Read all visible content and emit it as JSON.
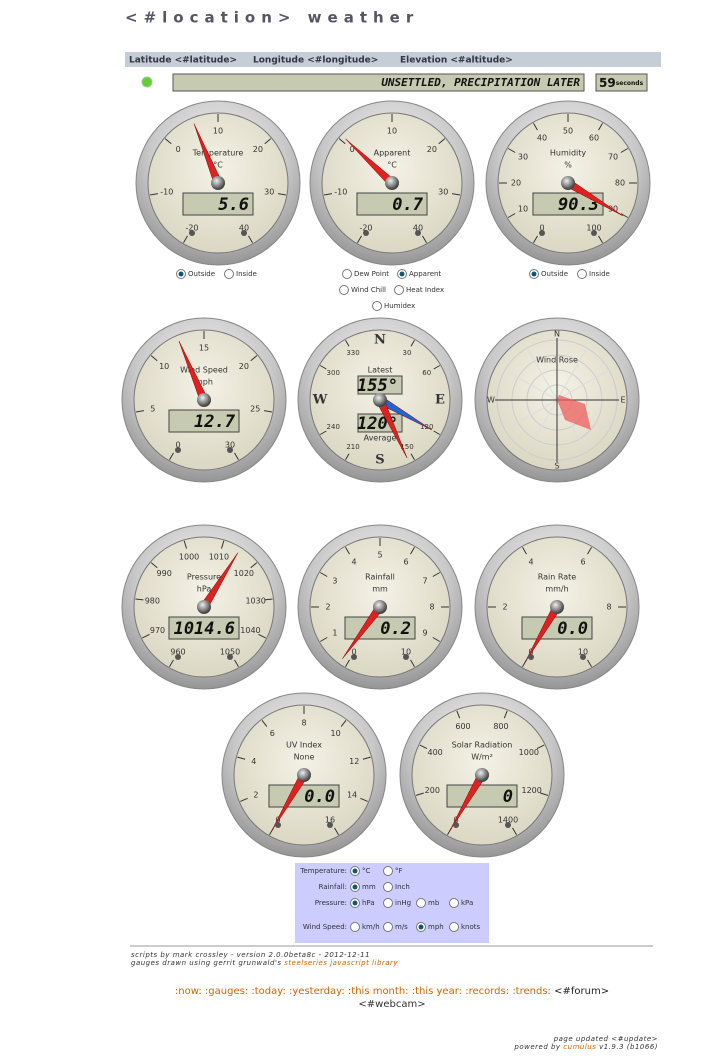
{
  "header": {
    "title": "<#location> weather",
    "coords": [
      "Latitude <#latitude>",
      "Longitude <#longitude>",
      "Elevation <#altitude>"
    ]
  },
  "status": {
    "forecast": "UNSETTLED, PRECIPITATION LATER",
    "countdown": 59,
    "countdown_unit": "seconds"
  },
  "gauges": [
    {
      "type": "radial",
      "title": "Temperature",
      "unit": "°C",
      "range": [
        -20,
        40
      ],
      "ticks": [
        -20,
        -10,
        0,
        10,
        20,
        30,
        40
      ],
      "value": 5.6
    },
    {
      "type": "radial",
      "title": "Apparent",
      "unit": "°C",
      "range": [
        -20,
        40
      ],
      "ticks": [
        -20,
        -10,
        0,
        10,
        20,
        30,
        40
      ],
      "value": 0.7
    },
    {
      "type": "radial",
      "title": "Humidity",
      "unit": "%",
      "range": [
        0,
        100
      ],
      "ticks": [
        0,
        10,
        20,
        30,
        40,
        50,
        60,
        70,
        80,
        90,
        100
      ],
      "value": 90.3
    },
    {
      "type": "radial",
      "title": "Wind Speed",
      "unit": "mph",
      "range": [
        0,
        30
      ],
      "ticks": [
        0,
        5,
        10,
        15,
        20,
        25,
        30
      ],
      "value": 12.7
    },
    {
      "type": "compass",
      "titles": [
        "Latest",
        "Average"
      ],
      "points": [
        "N",
        "E",
        "S",
        "W"
      ],
      "ticks": [
        30,
        60,
        120,
        150,
        210,
        240,
        300,
        330
      ],
      "values": [
        155,
        120
      ],
      "value_labels": [
        "155°",
        "120°"
      ]
    },
    {
      "type": "rose",
      "title": "Wind Rose",
      "points": [
        "N",
        "E",
        "S",
        "W"
      ]
    },
    {
      "type": "radial",
      "title": "Pressure",
      "unit": "hPa",
      "range": [
        960,
        1050
      ],
      "ticks": [
        960,
        970,
        980,
        990,
        1000,
        1010,
        1020,
        1030,
        1040,
        1050
      ],
      "value": 1014.6
    },
    {
      "type": "radial",
      "title": "Rainfall",
      "unit": "mm",
      "range": [
        0,
        10
      ],
      "ticks": [
        0,
        1,
        2,
        3,
        4,
        5,
        6,
        7,
        8,
        9,
        10
      ],
      "value": 0.2
    },
    {
      "type": "radial",
      "title": "Rain Rate",
      "unit": "mm/h",
      "range": [
        0,
        10
      ],
      "ticks": [
        0,
        2,
        4,
        6,
        8,
        10
      ],
      "value": 0,
      "value_label": "0.0"
    },
    {
      "type": "radial",
      "title": "UV Index",
      "unit": "None",
      "range": [
        0,
        16
      ],
      "ticks": [
        0,
        2,
        4,
        6,
        8,
        10,
        12,
        14,
        16
      ],
      "value": 0,
      "value_label": "0.0"
    },
    {
      "type": "radial",
      "title": "Solar Radiation",
      "unit": "W/m²",
      "range": [
        0,
        1400
      ],
      "ticks": [
        0,
        200,
        400,
        600,
        800,
        1000,
        1200,
        1400
      ],
      "value": 0
    }
  ],
  "options": [
    {
      "items": [
        "Outside",
        "Inside"
      ],
      "checked": 0
    },
    {
      "items": [
        "Dew Point",
        "Apparent",
        "Wind Chill",
        "Heat Index",
        "Humidex"
      ],
      "checked": 1
    },
    {
      "items": [
        "Outside",
        "Inside"
      ],
      "checked": 0
    }
  ],
  "units": [
    {
      "label": "Temperature:",
      "items": [
        "°C",
        "°F"
      ],
      "checked": 0
    },
    {
      "label": "Rainfall:",
      "items": [
        "mm",
        "Inch"
      ],
      "checked": 0
    },
    {
      "label": "Pressure:",
      "items": [
        "hPa",
        "inHg",
        "mb",
        "kPa"
      ],
      "checked": 0
    },
    {
      "label": "Wind Speed:",
      "items": [
        "km/h",
        "m/s",
        "mph",
        "knots"
      ],
      "checked": 2
    }
  ],
  "footer": {
    "credits": [
      "scripts by mark crossley - version 2.0.0beta8c - 2012-12-11",
      "gauges drawn using gerrit grunwald's ",
      "steelseries javascript library"
    ],
    "nav": [
      ":now:",
      ":gauges:",
      ":today:",
      ":yesterday:",
      ":this month:",
      ":this year:",
      ":records:",
      ":trends:",
      "<#forum>",
      "<#webcam>"
    ],
    "updated": "page updated <#update>",
    "powered": [
      "powered by ",
      "cumulus",
      " v1.9.3 (b1066)"
    ]
  }
}
